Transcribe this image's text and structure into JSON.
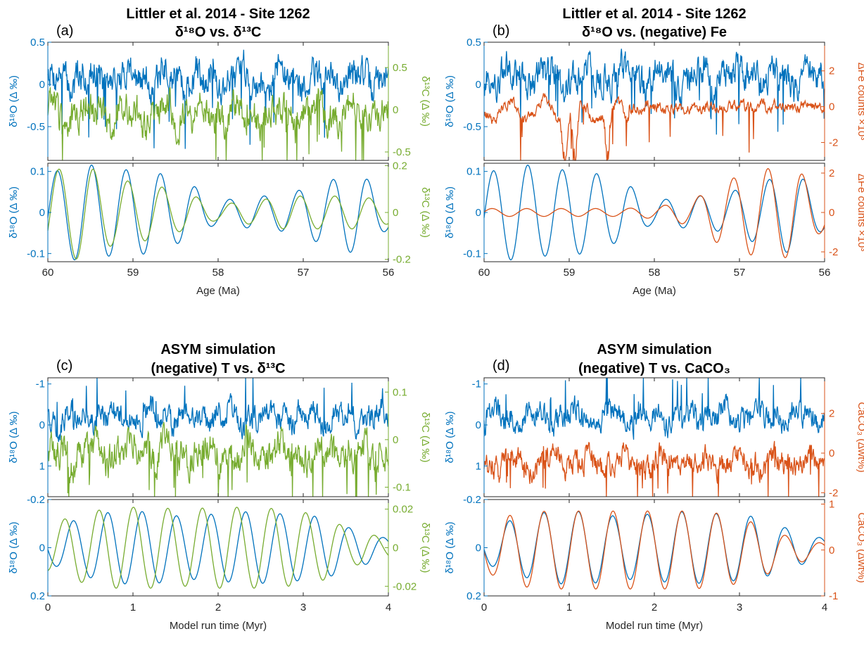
{
  "colors": {
    "blue": "#0072bd",
    "green": "#77ac30",
    "orange": "#d95319",
    "axis": "#262626"
  },
  "panels": [
    {
      "letter": "(a)",
      "title1": "Littler et al. 2014 - Site 1262",
      "title2": "δ¹⁸O vs. δ¹³C",
      "xlabel": "Age (Ma)",
      "xticks": [
        "60",
        "59",
        "58",
        "57",
        "56"
      ],
      "top": {
        "left_label": "δ¹⁸O (Δ ‰)",
        "left_ticks": [
          "0.5",
          "0",
          "-0.5"
        ],
        "right_label": "δ¹³C (Δ ‰)",
        "right_ticks": [
          "0.5",
          "0",
          "-0.5"
        ]
      },
      "bottom": {
        "left_label": "δ¹⁸O (Δ ‰)",
        "left_ticks": [
          "0.1",
          "0",
          "-0.1"
        ],
        "right_label": "δ¹³C (Δ ‰)",
        "right_ticks": [
          "0.2",
          "0",
          "-0.2"
        ]
      }
    },
    {
      "letter": "(b)",
      "title1": "Littler et al. 2014 - Site 1262",
      "title2": "δ¹⁸O vs. (negative) Fe",
      "xlabel": "Age (Ma)",
      "xticks": [
        "60",
        "59",
        "58",
        "57",
        "56"
      ],
      "top": {
        "left_label": "δ¹⁸O (Δ ‰)",
        "left_ticks": [
          "0.5",
          "0",
          "-0.5"
        ],
        "right_label": "ΔFe counts ×10³",
        "right_ticks": [
          "2",
          "0",
          "-2"
        ]
      },
      "bottom": {
        "left_label": "δ¹⁸O (Δ ‰)",
        "left_ticks": [
          "0.1",
          "0",
          "-0.1"
        ],
        "right_label": "ΔFe counts ×10³",
        "right_ticks": [
          "2",
          "0",
          "-2"
        ]
      }
    },
    {
      "letter": "(c)",
      "title1": "ASYM simulation",
      "title2": "(negative) T vs. δ¹³C",
      "xlabel": "Model run time (Myr)",
      "xticks": [
        "0",
        "1",
        "2",
        "3",
        "4"
      ],
      "top": {
        "left_label": "δ¹⁸O (Δ ‰)",
        "left_ticks": [
          "-1",
          "0",
          "1"
        ],
        "right_label": "δ¹³C (Δ ‰)",
        "right_ticks": [
          "0.1",
          "0",
          "-0.1"
        ]
      },
      "bottom": {
        "left_label": "δ¹⁸O (Δ ‰)",
        "left_ticks": [
          "-0.2",
          "0",
          "0.2"
        ],
        "right_label": "δ¹³C (Δ ‰)",
        "right_ticks": [
          "0.02",
          "0",
          "-0.02"
        ]
      }
    },
    {
      "letter": "(d)",
      "title1": "ASYM simulation",
      "title2": "(negative) T vs. CaCO₃",
      "xlabel": "Model run time (Myr)",
      "xticks": [
        "0",
        "1",
        "2",
        "3",
        "4"
      ],
      "top": {
        "left_label": "δ¹⁸O (Δ ‰)",
        "left_ticks": [
          "-1",
          "0",
          "1"
        ],
        "right_label": "CaCO₃ (Δwt%)",
        "right_ticks": [
          "2",
          "0",
          "-2"
        ]
      },
      "bottom": {
        "left_label": "δ¹⁸O (Δ ‰)",
        "left_ticks": [
          "-0.2",
          "0",
          "0.2"
        ],
        "right_label": "CaCO₃ (Δwt%)",
        "right_ticks": [
          "1",
          "0",
          "-1"
        ]
      }
    }
  ],
  "chart_data": [
    {
      "type": "line",
      "panel": "(a) top",
      "x_range": [
        60,
        56
      ],
      "ylim_left": [
        -0.9,
        0.5
      ],
      "ylim_right": [
        -0.6,
        0.8
      ],
      "series": [
        {
          "name": "δ¹⁸O",
          "axis": "left",
          "color": "blue",
          "kind": "noisy",
          "mean": 0.08,
          "amp": 0.25
        },
        {
          "name": "δ¹³C",
          "axis": "right",
          "color": "green",
          "kind": "noisy",
          "mean": -0.05,
          "amp": 0.25
        }
      ]
    },
    {
      "type": "line",
      "panel": "(a) bottom",
      "x_range": [
        60,
        56
      ],
      "ylim_left": [
        -0.12,
        0.12
      ],
      "ylim_right": [
        -0.21,
        0.21
      ],
      "series": [
        {
          "name": "δ¹⁸O",
          "axis": "left",
          "color": "blue",
          "kind": "filtered",
          "period": 0.405,
          "peak_x": 56.65,
          "amps": [
            0.045,
            0.098,
            0.072,
            0.046,
            0.038,
            0.03,
            0.073,
            0.101,
            0.105,
            0.118,
            0.098
          ]
        },
        {
          "name": "δ¹³C",
          "axis": "right",
          "color": "green",
          "kind": "filtered",
          "period": 0.405,
          "peak_x": 56.63,
          "amps": [
            0.05,
            0.07,
            0.07,
            0.07,
            0.05,
            0.035,
            0.08,
            0.12,
            0.14,
            0.2,
            0.18
          ]
        }
      ]
    },
    {
      "type": "line",
      "panel": "(b) top",
      "x_range": [
        60,
        56
      ],
      "ylim_left": [
        -0.9,
        0.5
      ],
      "ylim_right": [
        -3.0,
        3.6
      ],
      "series": [
        {
          "name": "δ¹⁸O",
          "axis": "left",
          "color": "blue",
          "kind": "noisy",
          "mean": 0.08,
          "amp": 0.25
        },
        {
          "name": "(negative) Fe",
          "axis": "right",
          "color": "orange",
          "kind": "spiky",
          "mean": 0.0,
          "amp": 0.4,
          "dips": [
            59.05,
            58.93,
            58.55
          ]
        }
      ]
    },
    {
      "type": "line",
      "panel": "(b) bottom",
      "x_range": [
        60,
        56
      ],
      "ylim_left": [
        -0.12,
        0.12
      ],
      "ylim_right": [
        -2.5,
        2.5
      ],
      "series": [
        {
          "name": "δ¹⁸O",
          "axis": "left",
          "color": "blue",
          "kind": "filtered",
          "period": 0.405,
          "peak_x": 56.65,
          "amps": [
            0.045,
            0.098,
            0.072,
            0.046,
            0.038,
            0.03,
            0.073,
            0.101,
            0.105,
            0.118,
            0.098
          ]
        },
        {
          "name": "(negative) Fe",
          "axis": "right",
          "color": "orange",
          "kind": "filtered",
          "period": 0.405,
          "peak_x": 59.5,
          "amps": [
            1.0,
            2.3,
            2.2,
            1.6,
            0.6,
            0.3,
            0.2,
            0.2,
            0.2,
            0.2,
            0.2
          ]
        }
      ]
    },
    {
      "type": "line",
      "panel": "(c) top",
      "x_range": [
        0,
        4
      ],
      "ylim_left": [
        1.75,
        -1.15
      ],
      "ylim_right": [
        -0.12,
        0.13
      ],
      "series": [
        {
          "name": "(negative) T",
          "axis": "left",
          "color": "blue",
          "kind": "noisy",
          "mean": -0.2,
          "amp": 0.4
        },
        {
          "name": "δ¹³C",
          "axis": "right",
          "color": "green",
          "kind": "noisy",
          "mean": -0.03,
          "amp": 0.045
        }
      ]
    },
    {
      "type": "line",
      "panel": "(c) bottom",
      "x_range": [
        0,
        4
      ],
      "ylim_left": [
        0.2,
        -0.2
      ],
      "ylim_right": [
        -0.025,
        0.025
      ],
      "series": [
        {
          "name": "(negative) T",
          "axis": "left",
          "color": "blue",
          "kind": "filtered",
          "period": 0.405,
          "peak_x": 0.5,
          "amps": [
            0.07,
            0.12,
            0.15,
            0.15,
            0.13,
            0.14,
            0.15,
            0.14,
            0.13,
            0.08,
            0.04
          ]
        },
        {
          "name": "δ¹³C",
          "axis": "right",
          "color": "green",
          "kind": "filtered",
          "period": 0.405,
          "peak_x": 0.6,
          "amps": [
            0.012,
            0.018,
            0.021,
            0.021,
            0.02,
            0.021,
            0.021,
            0.02,
            0.017,
            0.009,
            0.005
          ]
        }
      ]
    },
    {
      "type": "line",
      "panel": "(d) top",
      "x_range": [
        0,
        4
      ],
      "ylim_left": [
        1.75,
        -1.15
      ],
      "ylim_right": [
        -2.2,
        3.8
      ],
      "series": [
        {
          "name": "(negative) T",
          "axis": "left",
          "color": "blue",
          "kind": "noisy",
          "mean": -0.2,
          "amp": 0.4
        },
        {
          "name": "CaCO₃",
          "axis": "right",
          "color": "orange",
          "kind": "noisy",
          "mean": -0.5,
          "amp": 0.8
        }
      ]
    },
    {
      "type": "line",
      "panel": "(d) bottom",
      "x_range": [
        0,
        4
      ],
      "ylim_left": [
        0.2,
        -0.2
      ],
      "ylim_right": [
        -1.0,
        1.1
      ],
      "series": [
        {
          "name": "(negative) T",
          "axis": "left",
          "color": "blue",
          "kind": "filtered",
          "period": 0.405,
          "peak_x": 0.5,
          "amps": [
            0.07,
            0.12,
            0.15,
            0.15,
            0.13,
            0.14,
            0.15,
            0.14,
            0.13,
            0.08,
            0.04
          ]
        },
        {
          "name": "CaCO₃",
          "axis": "right",
          "color": "orange",
          "kind": "filtered",
          "period": 0.405,
          "peak_x": 0.3,
          "amps": [
            0.5,
            0.8,
            0.85,
            0.85,
            0.85,
            0.85,
            0.85,
            0.8,
            0.6,
            0.3,
            0.15
          ]
        }
      ]
    }
  ]
}
